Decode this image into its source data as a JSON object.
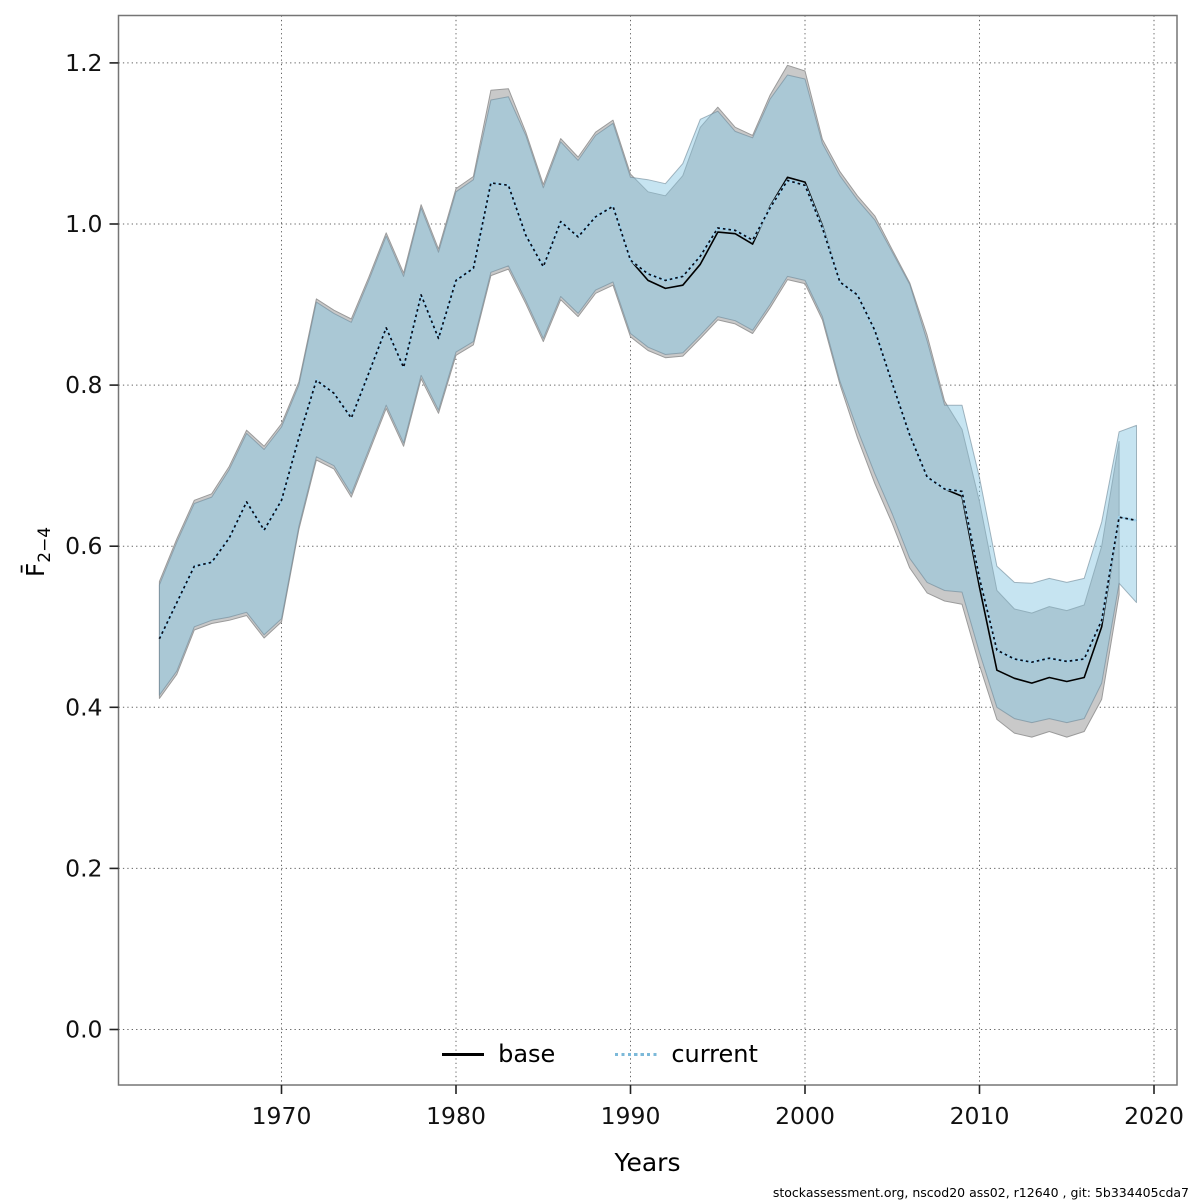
{
  "legend": {
    "base_label": "base",
    "current_label": "current"
  },
  "chart_data": {
    "type": "line",
    "title": "",
    "xlabel": "Years",
    "ylabel": {
      "main": "F̄",
      "sub": "2−4"
    },
    "footer": "stockassessment.org, nscod20 ass02, r12640 , git: 5b334405cda7",
    "grid": "dotted",
    "legend_position": "bottom-center",
    "xlim": [
      1960.6,
      2021.3
    ],
    "ylim": [
      -0.07,
      1.26
    ],
    "x_ticks": [
      {
        "v": 1970,
        "label": "1970"
      },
      {
        "v": 1980,
        "label": "1980"
      },
      {
        "v": 1990,
        "label": "1990"
      },
      {
        "v": 2000,
        "label": "2000"
      },
      {
        "v": 2010,
        "label": "2010"
      },
      {
        "v": 2020,
        "label": "2020"
      }
    ],
    "y_ticks": [
      {
        "v": 0.0,
        "label": "0.0"
      },
      {
        "v": 0.2,
        "label": "0.2"
      },
      {
        "v": 0.4,
        "label": "0.4"
      },
      {
        "v": 0.6,
        "label": "0.6"
      },
      {
        "v": 0.8,
        "label": "0.8"
      },
      {
        "v": 1.0,
        "label": "1.0"
      },
      {
        "v": 1.2,
        "label": "1.2"
      }
    ],
    "series": [
      {
        "name": "base",
        "line_style": "solid",
        "line_color": "#000000",
        "band_fill": "#c9c9c9",
        "band_stroke": "#9b9b9b",
        "year_start": 1963,
        "year_end": 2018,
        "values": [
          0.485,
          0.53,
          0.575,
          0.58,
          0.61,
          0.655,
          0.62,
          0.657,
          0.735,
          0.806,
          0.79,
          0.759,
          0.815,
          0.871,
          0.822,
          0.912,
          0.858,
          0.93,
          0.945,
          1.051,
          1.048,
          0.986,
          0.947,
          1.003,
          0.984,
          1.009,
          1.022,
          0.955,
          0.93,
          0.92,
          0.924,
          0.95,
          0.99,
          0.988,
          0.975,
          1.022,
          1.058,
          1.052,
          0.998,
          0.928,
          0.912,
          0.868,
          0.802,
          0.738,
          0.686,
          0.671,
          0.662,
          0.549,
          0.446,
          0.436,
          0.43,
          0.437,
          0.432,
          0.437,
          0.5,
          0.636
        ],
        "lo": [
          0.411,
          0.441,
          0.496,
          0.504,
          0.508,
          0.514,
          0.486,
          0.506,
          0.621,
          0.707,
          0.696,
          0.661,
          0.716,
          0.771,
          0.724,
          0.808,
          0.765,
          0.837,
          0.85,
          0.936,
          0.944,
          0.901,
          0.854,
          0.906,
          0.885,
          0.914,
          0.924,
          0.86,
          0.843,
          0.834,
          0.836,
          0.858,
          0.881,
          0.876,
          0.864,
          0.896,
          0.931,
          0.926,
          0.881,
          0.801,
          0.735,
          0.678,
          0.628,
          0.573,
          0.542,
          0.532,
          0.528,
          0.452,
          0.385,
          0.368,
          0.363,
          0.37,
          0.363,
          0.37,
          0.41,
          0.54
        ],
        "hi": [
          0.556,
          0.609,
          0.657,
          0.665,
          0.699,
          0.744,
          0.724,
          0.752,
          0.804,
          0.907,
          0.893,
          0.882,
          0.934,
          0.989,
          0.939,
          1.024,
          0.969,
          1.044,
          1.059,
          1.166,
          1.168,
          1.114,
          1.049,
          1.106,
          1.083,
          1.114,
          1.129,
          1.062,
          1.04,
          1.035,
          1.06,
          1.12,
          1.145,
          1.12,
          1.11,
          1.16,
          1.197,
          1.19,
          1.105,
          1.065,
          1.035,
          1.01,
          0.968,
          0.927,
          0.862,
          0.78,
          0.745,
          0.655,
          0.545,
          0.522,
          0.517,
          0.525,
          0.52,
          0.527,
          0.6,
          0.73
        ]
      },
      {
        "name": "current",
        "line_style": "dotted",
        "line_under_color": "#9fd2ec",
        "line_dash_color": "#0a0a14",
        "band_fill": "rgba(135,198,226,0.48)",
        "band_stroke": "rgba(110,135,150,0.6)",
        "year_start": 1963,
        "year_end": 2019,
        "values": [
          0.485,
          0.53,
          0.575,
          0.58,
          0.61,
          0.655,
          0.62,
          0.657,
          0.735,
          0.806,
          0.79,
          0.759,
          0.815,
          0.871,
          0.822,
          0.912,
          0.858,
          0.93,
          0.945,
          1.051,
          1.048,
          0.986,
          0.947,
          1.003,
          0.984,
          1.009,
          1.022,
          0.955,
          0.938,
          0.93,
          0.935,
          0.96,
          0.995,
          0.992,
          0.98,
          1.02,
          1.054,
          1.048,
          0.995,
          0.928,
          0.912,
          0.868,
          0.802,
          0.738,
          0.686,
          0.671,
          0.668,
          0.56,
          0.471,
          0.46,
          0.456,
          0.461,
          0.457,
          0.46,
          0.508,
          0.636,
          0.632
        ],
        "lo": [
          0.415,
          0.445,
          0.5,
          0.508,
          0.512,
          0.518,
          0.49,
          0.51,
          0.625,
          0.711,
          0.7,
          0.665,
          0.72,
          0.775,
          0.728,
          0.812,
          0.769,
          0.841,
          0.854,
          0.94,
          0.948,
          0.905,
          0.858,
          0.91,
          0.889,
          0.918,
          0.928,
          0.864,
          0.847,
          0.838,
          0.84,
          0.862,
          0.885,
          0.88,
          0.868,
          0.9,
          0.935,
          0.93,
          0.885,
          0.805,
          0.745,
          0.69,
          0.64,
          0.585,
          0.555,
          0.545,
          0.543,
          0.468,
          0.4,
          0.386,
          0.381,
          0.386,
          0.381,
          0.386,
          0.43,
          0.554,
          0.53
        ],
        "hi": [
          0.552,
          0.605,
          0.653,
          0.661,
          0.695,
          0.74,
          0.72,
          0.748,
          0.8,
          0.903,
          0.889,
          0.878,
          0.93,
          0.985,
          0.935,
          1.02,
          0.965,
          1.04,
          1.055,
          1.154,
          1.158,
          1.11,
          1.045,
          1.102,
          1.079,
          1.11,
          1.125,
          1.058,
          1.055,
          1.05,
          1.075,
          1.13,
          1.14,
          1.115,
          1.107,
          1.155,
          1.185,
          1.18,
          1.1,
          1.06,
          1.03,
          1.005,
          0.965,
          0.925,
          0.855,
          0.775,
          0.775,
          0.685,
          0.575,
          0.555,
          0.554,
          0.56,
          0.555,
          0.56,
          0.63,
          0.742,
          0.75
        ]
      }
    ]
  }
}
